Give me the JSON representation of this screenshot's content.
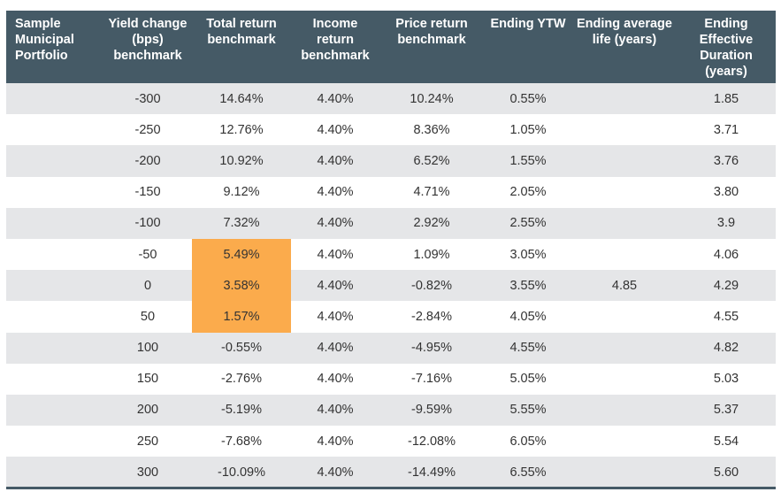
{
  "chart_data": {
    "type": "table",
    "columns": [
      "Sample Municipal Portfolio",
      "Yield change (bps) benchmark",
      "Total return benchmark",
      "Income return benchmark",
      "Price return benchmark",
      "Ending YTW",
      "Ending average life (years)",
      "Ending Effective Duration (years)"
    ],
    "rows": [
      [
        "",
        "-300",
        "14.64%",
        "4.40%",
        "10.24%",
        "0.55%",
        "",
        "1.85"
      ],
      [
        "",
        "-250",
        "12.76%",
        "4.40%",
        "8.36%",
        "1.05%",
        "",
        "3.71"
      ],
      [
        "",
        "-200",
        "10.92%",
        "4.40%",
        "6.52%",
        "1.55%",
        "",
        "3.76"
      ],
      [
        "",
        "-150",
        "9.12%",
        "4.40%",
        "4.71%",
        "2.05%",
        "",
        "3.80"
      ],
      [
        "",
        "-100",
        "7.32%",
        "4.40%",
        "2.92%",
        "2.55%",
        "",
        "3.9"
      ],
      [
        "",
        "-50",
        "5.49%",
        "4.40%",
        "1.09%",
        "3.05%",
        "",
        "4.06"
      ],
      [
        "",
        "0",
        "3.58%",
        "4.40%",
        "-0.82%",
        "3.55%",
        "4.85",
        "4.29"
      ],
      [
        "",
        "50",
        "1.57%",
        "4.40%",
        "-2.84%",
        "4.05%",
        "",
        "4.55"
      ],
      [
        "",
        "100",
        "-0.55%",
        "4.40%",
        "-4.95%",
        "4.55%",
        "",
        "4.82"
      ],
      [
        "",
        "150",
        "-2.76%",
        "4.40%",
        "-7.16%",
        "5.05%",
        "",
        "5.03"
      ],
      [
        "",
        "200",
        "-5.19%",
        "4.40%",
        "-9.59%",
        "5.55%",
        "",
        "5.37"
      ],
      [
        "",
        "250",
        "-7.68%",
        "4.40%",
        "-12.08%",
        "6.05%",
        "",
        "5.54"
      ],
      [
        "",
        "300",
        "-10.09%",
        "4.40%",
        "-14.49%",
        "6.55%",
        "",
        "5.60"
      ]
    ],
    "highlighted_cells": [
      [
        5,
        2
      ],
      [
        6,
        2
      ],
      [
        7,
        2
      ]
    ],
    "colors": {
      "header_bg": "#455a66",
      "header_text": "#ffffff",
      "stripe": "#e5e6e8",
      "highlight": "#fbab4c",
      "body_text": "#333333"
    }
  }
}
